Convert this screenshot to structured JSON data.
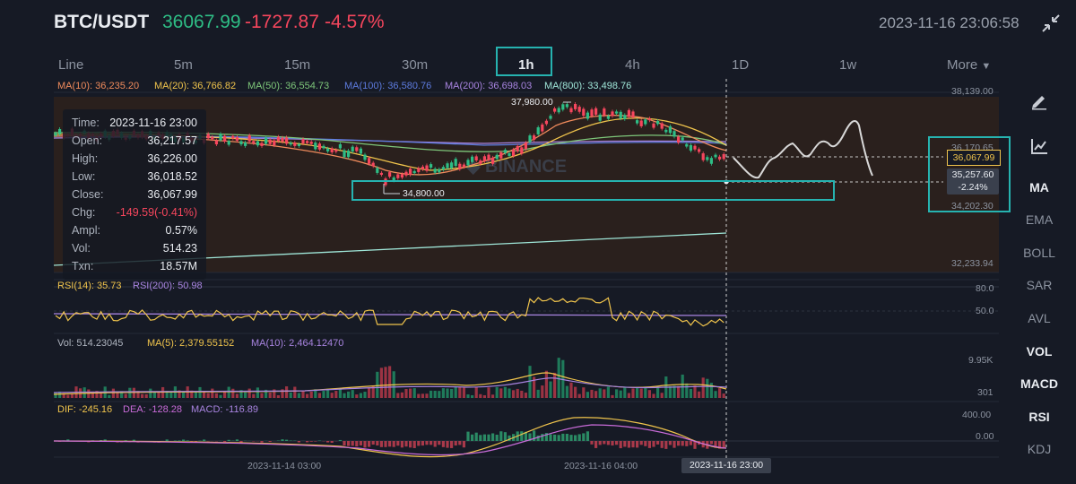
{
  "header": {
    "symbol": "BTC/USDT",
    "price": "36067.99",
    "change": "-1727.87",
    "change_pct": "-4.57%",
    "time": "2023-11-16 23:06:58"
  },
  "timeframes": [
    "Line",
    "5m",
    "15m",
    "30m",
    "1h",
    "4h",
    "1D",
    "1w",
    "More"
  ],
  "active_timeframe": "1h",
  "ma_legend": [
    "MA(10): 36,235.20",
    "MA(20): 36,766.82",
    "MA(50): 36,554.73",
    "MA(100): 36,580.76",
    "MA(200): 36,698.03",
    "MA(800): 33,498.76"
  ],
  "ma_colors": [
    "#f08b5c",
    "#f0c44c",
    "#7ec77a",
    "#5d7bde",
    "#a884e0",
    "#9fe6d8"
  ],
  "price_axis": {
    "p1": "38,139.00",
    "p2": "36,170.65",
    "p3": "34,202.30",
    "p4": "32,233.94"
  },
  "current_price": "36,067.99",
  "countdown": {
    "price": "35,257.60",
    "pct": "-2.24%"
  },
  "annotations": {
    "high": "37,980.00",
    "low": "34,800.00"
  },
  "tooltip": [
    {
      "k": "Time:",
      "v": "2023-11-16 23:00"
    },
    {
      "k": "Open:",
      "v": "36,217.57"
    },
    {
      "k": "High:",
      "v": "36,226.00"
    },
    {
      "k": "Low:",
      "v": "36,018.52"
    },
    {
      "k": "Close:",
      "v": "36,067.99"
    },
    {
      "k": "Chg:",
      "v": "-149.59(-0.41%)"
    },
    {
      "k": "Ampl:",
      "v": "0.57%"
    },
    {
      "k": "Vol:",
      "v": "514.23"
    },
    {
      "k": "Txn:",
      "v": "18.57M"
    }
  ],
  "rsi": {
    "rsi14": "RSI(14): 35.73",
    "rsi200": "RSI(200): 50.98",
    "axis_high": "80.0",
    "axis_mid": "50.0"
  },
  "vol": {
    "vol": "Vol: 514.23045",
    "ma5": "MA(5): 2,379.55152",
    "ma10": "MA(10): 2,464.12470",
    "axis_high": "9.95K",
    "axis_low": "301"
  },
  "macd": {
    "dif": "DIF: -245.16",
    "dea": "DEA: -128.28",
    "macd": "MACD: -116.89",
    "axis_high": "400.00",
    "axis_zero": "0.00"
  },
  "time_axis": [
    "2023-11-14 03:00",
    "2023-11-16 04:00"
  ],
  "time_cursor": "2023-11-16 23:00",
  "right_menu": [
    "MA",
    "EMA",
    "BOLL",
    "SAR",
    "AVL",
    "VOL",
    "MACD",
    "RSI",
    "KDJ"
  ],
  "right_menu_active": [
    "MA",
    "VOL",
    "MACD",
    "RSI"
  ],
  "icons": [
    "collapse-icon",
    "draw-tool-icon",
    "indicator-chart-icon",
    "chevron-down-icon"
  ]
}
